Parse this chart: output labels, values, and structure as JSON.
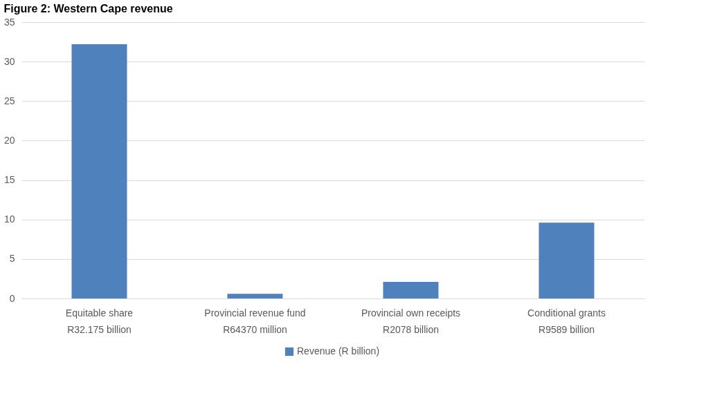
{
  "chart_data": {
    "type": "bar",
    "title": "Figure 2: Western Cape revenue",
    "categories": [
      "Equitable share\nR32.175 billion",
      "Provincial revenue fund\nR64370 million",
      "Provincial own receipts\nR2078 billion",
      "Conditional grants\nR9589 billion"
    ],
    "series": [
      {
        "name": "Revenue (R billion)",
        "color": "#4f81bd",
        "values": [
          32.2,
          0.6,
          2.1,
          9.6
        ]
      }
    ],
    "ylim": [
      0,
      35
    ],
    "yticks": [
      0,
      5,
      10,
      15,
      20,
      25,
      30,
      35
    ],
    "grid": "y",
    "legend": "bottom"
  }
}
